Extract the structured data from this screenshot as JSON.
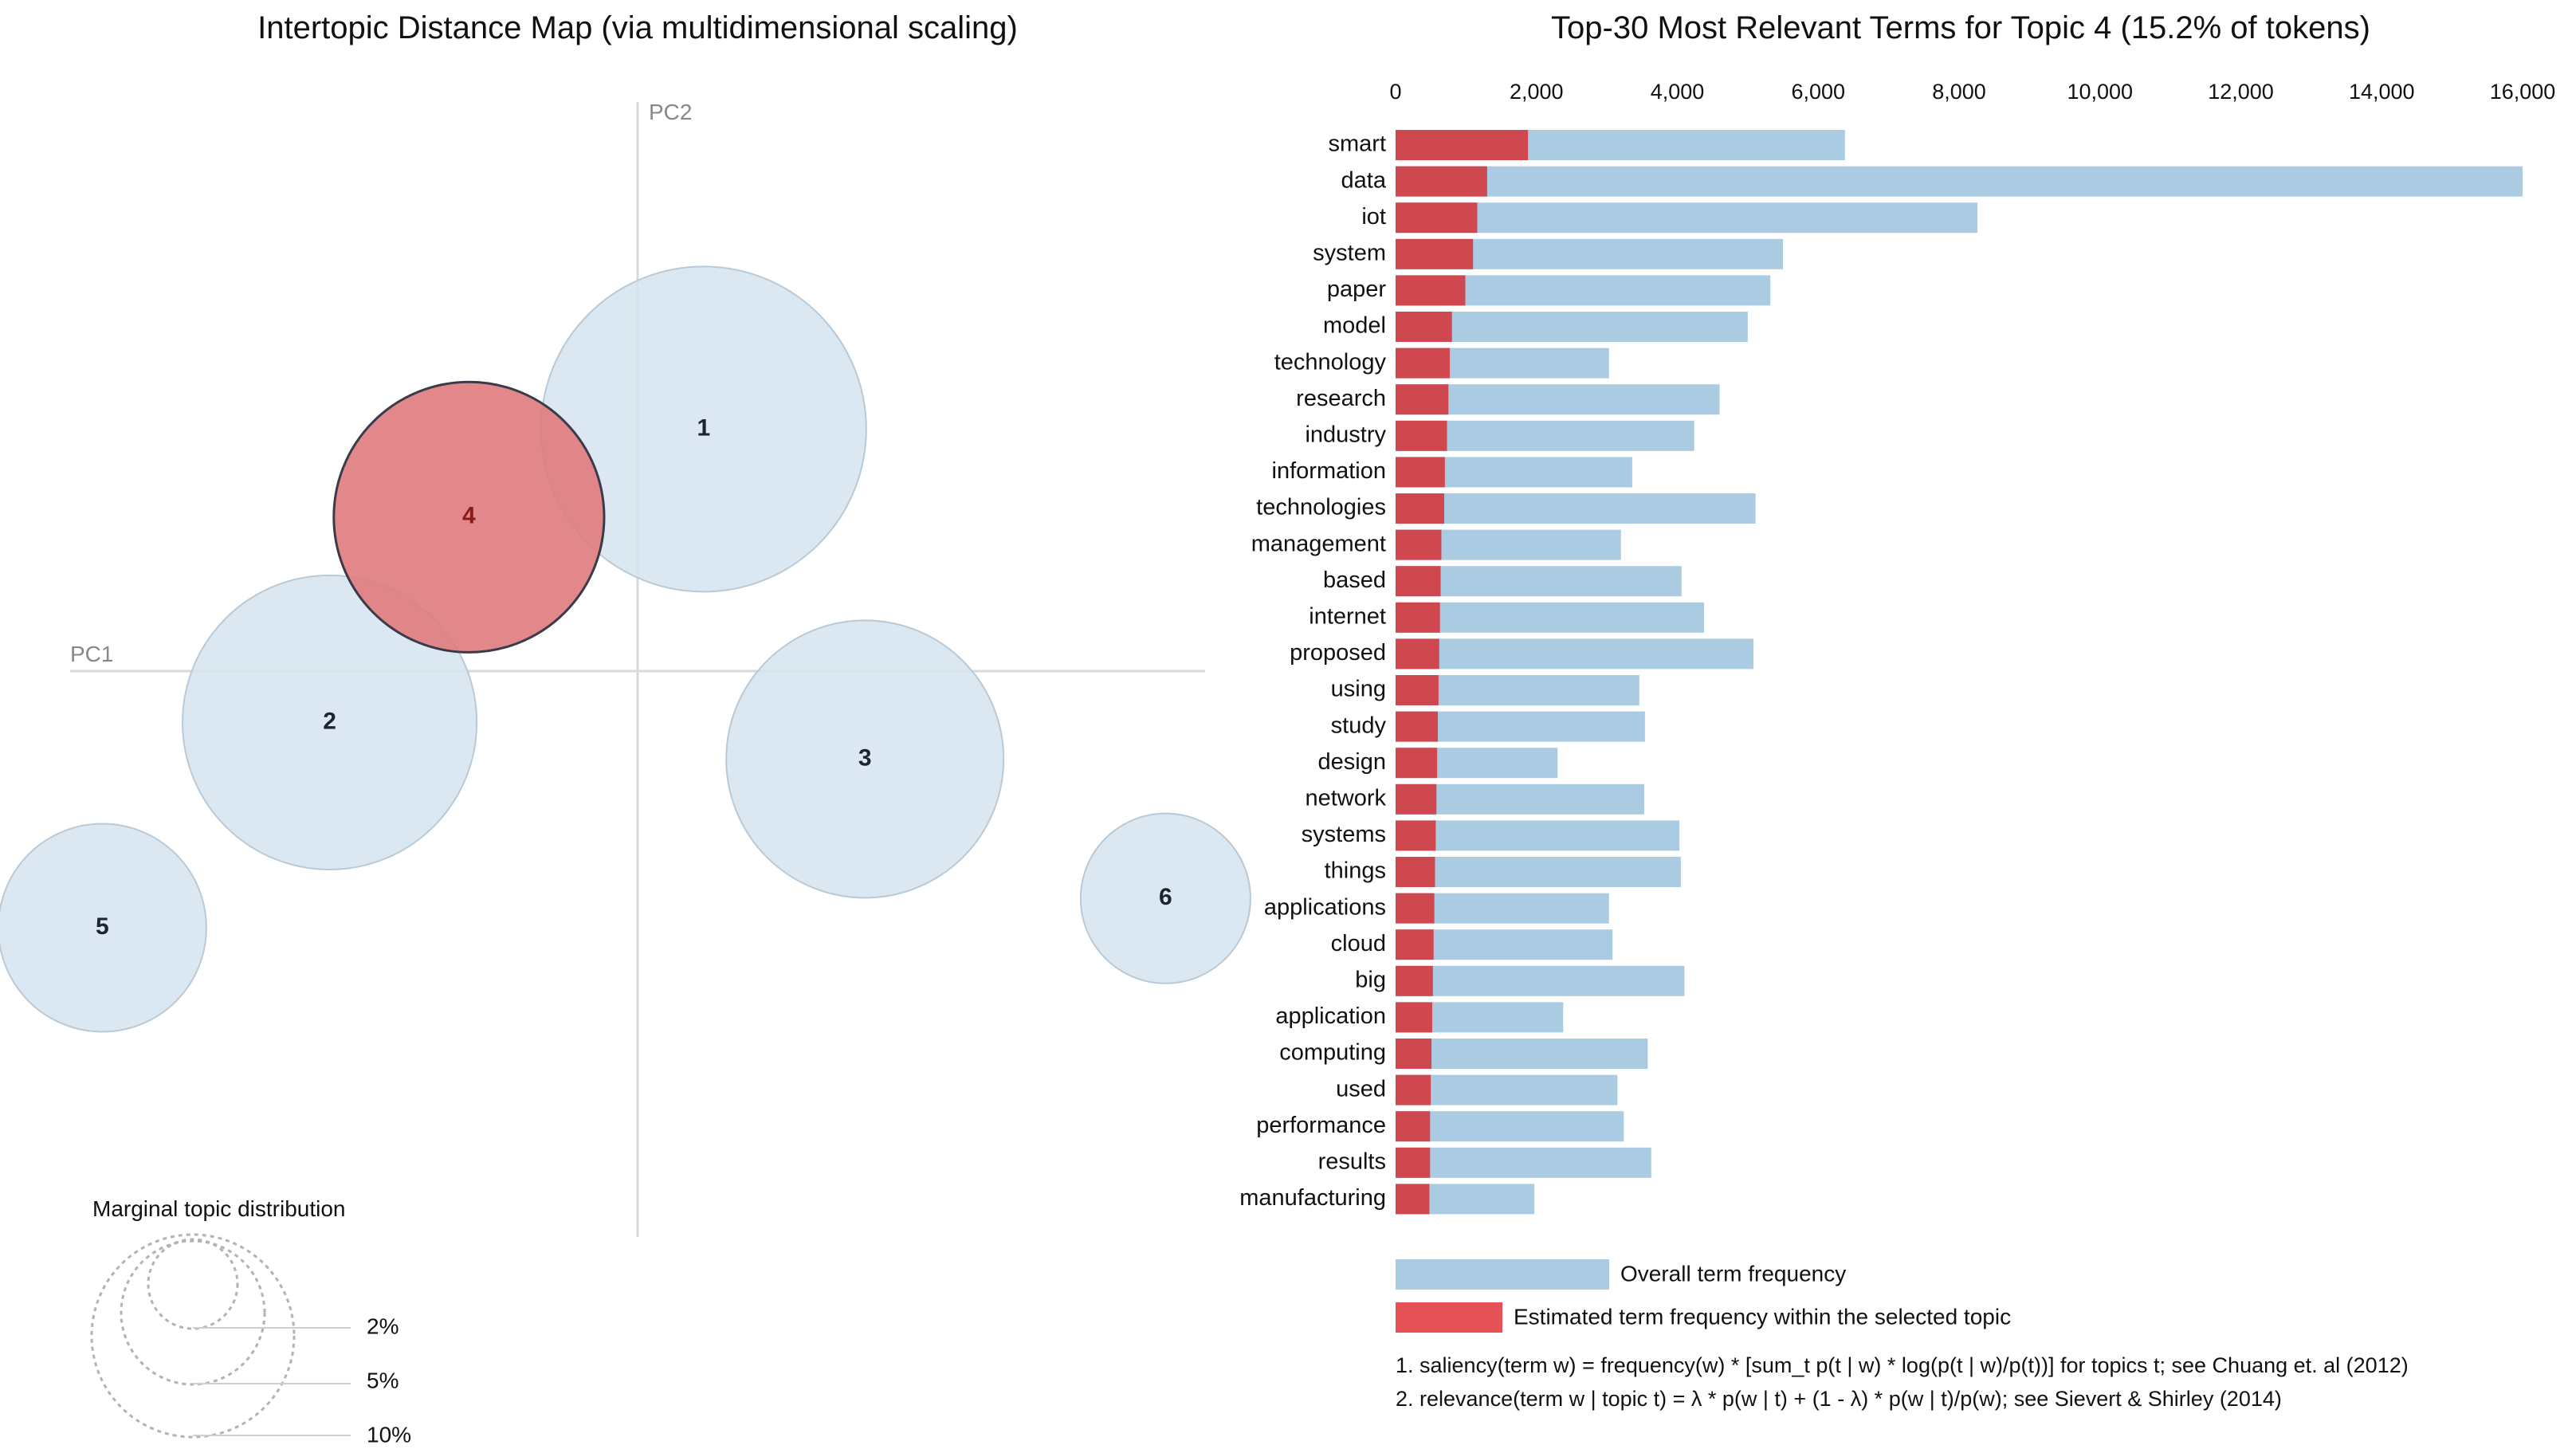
{
  "left_panel": {
    "title": "Intertopic Distance Map (via multidimensional scaling)",
    "pc1_label": "PC1",
    "pc2_label": "PC2",
    "selected_topic": 4,
    "legend": {
      "title": "Marginal topic distribution",
      "labels": [
        "2%",
        "5%",
        "10%"
      ]
    }
  },
  "right_panel": {
    "title": "Top-30 Most Relevant Terms for Topic 4 (15.2% of tokens)",
    "legend_overall": "Overall term frequency",
    "legend_estimated": "Estimated term frequency within the selected topic",
    "footnote1": "1. saliency(term w) = frequency(w) * [sum_t p(t | w) * log(p(t | w)/p(t))] for topics t; see Chuang et. al (2012)",
    "footnote2": "2. relevance(term w | topic t) = λ * p(w | t) + (1 - λ) * p(w | t)/p(w); see Sievert & Shirley (2014)"
  },
  "colors": {
    "topic_fill": "#d6e4ef",
    "topic_stroke": "#b9c9d6",
    "selected_fill": "#e07b7d",
    "selected_stroke": "#3a3a4a",
    "overall_bar": "#abcbe3",
    "topic_bar": "#d0484f",
    "legend_topic_bar": "#e45258",
    "axis_line": "#d9d9d9",
    "legend_circle": "#b3b3b3"
  },
  "chart_data": [
    {
      "type": "scatter",
      "title": "Intertopic Distance Map (via multidimensional scaling)",
      "xlabel": "PC1",
      "ylabel": "PC2",
      "topics": [
        {
          "id": 1,
          "x": 0.09,
          "y": 0.33,
          "marginal": 0.22
        },
        {
          "id": 2,
          "x": -0.42,
          "y": -0.07,
          "marginal": 0.18
        },
        {
          "id": 3,
          "x": 0.31,
          "y": -0.12,
          "marginal": 0.16
        },
        {
          "id": 4,
          "x": -0.23,
          "y": 0.21,
          "marginal": 0.152
        },
        {
          "id": 5,
          "x": -0.73,
          "y": -0.35,
          "marginal": 0.09
        },
        {
          "id": 6,
          "x": 0.72,
          "y": -0.31,
          "marginal": 0.06
        }
      ]
    },
    {
      "type": "bar",
      "orientation": "horizontal",
      "title": "Top-30 Most Relevant Terms for Topic 4 (15.2% of tokens)",
      "xlim": [
        0,
        16000
      ],
      "ticks": [
        0,
        2000,
        4000,
        6000,
        8000,
        10000,
        12000,
        14000,
        16000
      ],
      "tick_labels": [
        "0",
        "2,000",
        "4,000",
        "6,000",
        "8,000",
        "10,000",
        "12,000",
        "14,000",
        "16,000"
      ],
      "categories": [
        "smart",
        "data",
        "iot",
        "system",
        "paper",
        "model",
        "technology",
        "research",
        "industry",
        "information",
        "technologies",
        "management",
        "based",
        "internet",
        "proposed",
        "using",
        "study",
        "design",
        "network",
        "systems",
        "things",
        "applications",
        "cloud",
        "big",
        "application",
        "computing",
        "used",
        "performance",
        "results",
        "manufacturing"
      ],
      "series": [
        {
          "name": "Overall term frequency",
          "values": [
            6380,
            16000,
            8260,
            5500,
            5320,
            5000,
            3030,
            4600,
            4240,
            3360,
            5110,
            3200,
            4060,
            4380,
            5080,
            3460,
            3540,
            2300,
            3530,
            4030,
            4050,
            3030,
            3080,
            4100,
            2380,
            3580,
            3150,
            3240,
            3630,
            1970
          ]
        },
        {
          "name": "Estimated term frequency within the selected topic",
          "values": [
            1880,
            1300,
            1160,
            1100,
            990,
            800,
            770,
            750,
            730,
            700,
            690,
            650,
            640,
            630,
            620,
            610,
            600,
            590,
            580,
            570,
            560,
            550,
            540,
            530,
            520,
            510,
            500,
            490,
            490,
            480
          ]
        }
      ]
    }
  ]
}
